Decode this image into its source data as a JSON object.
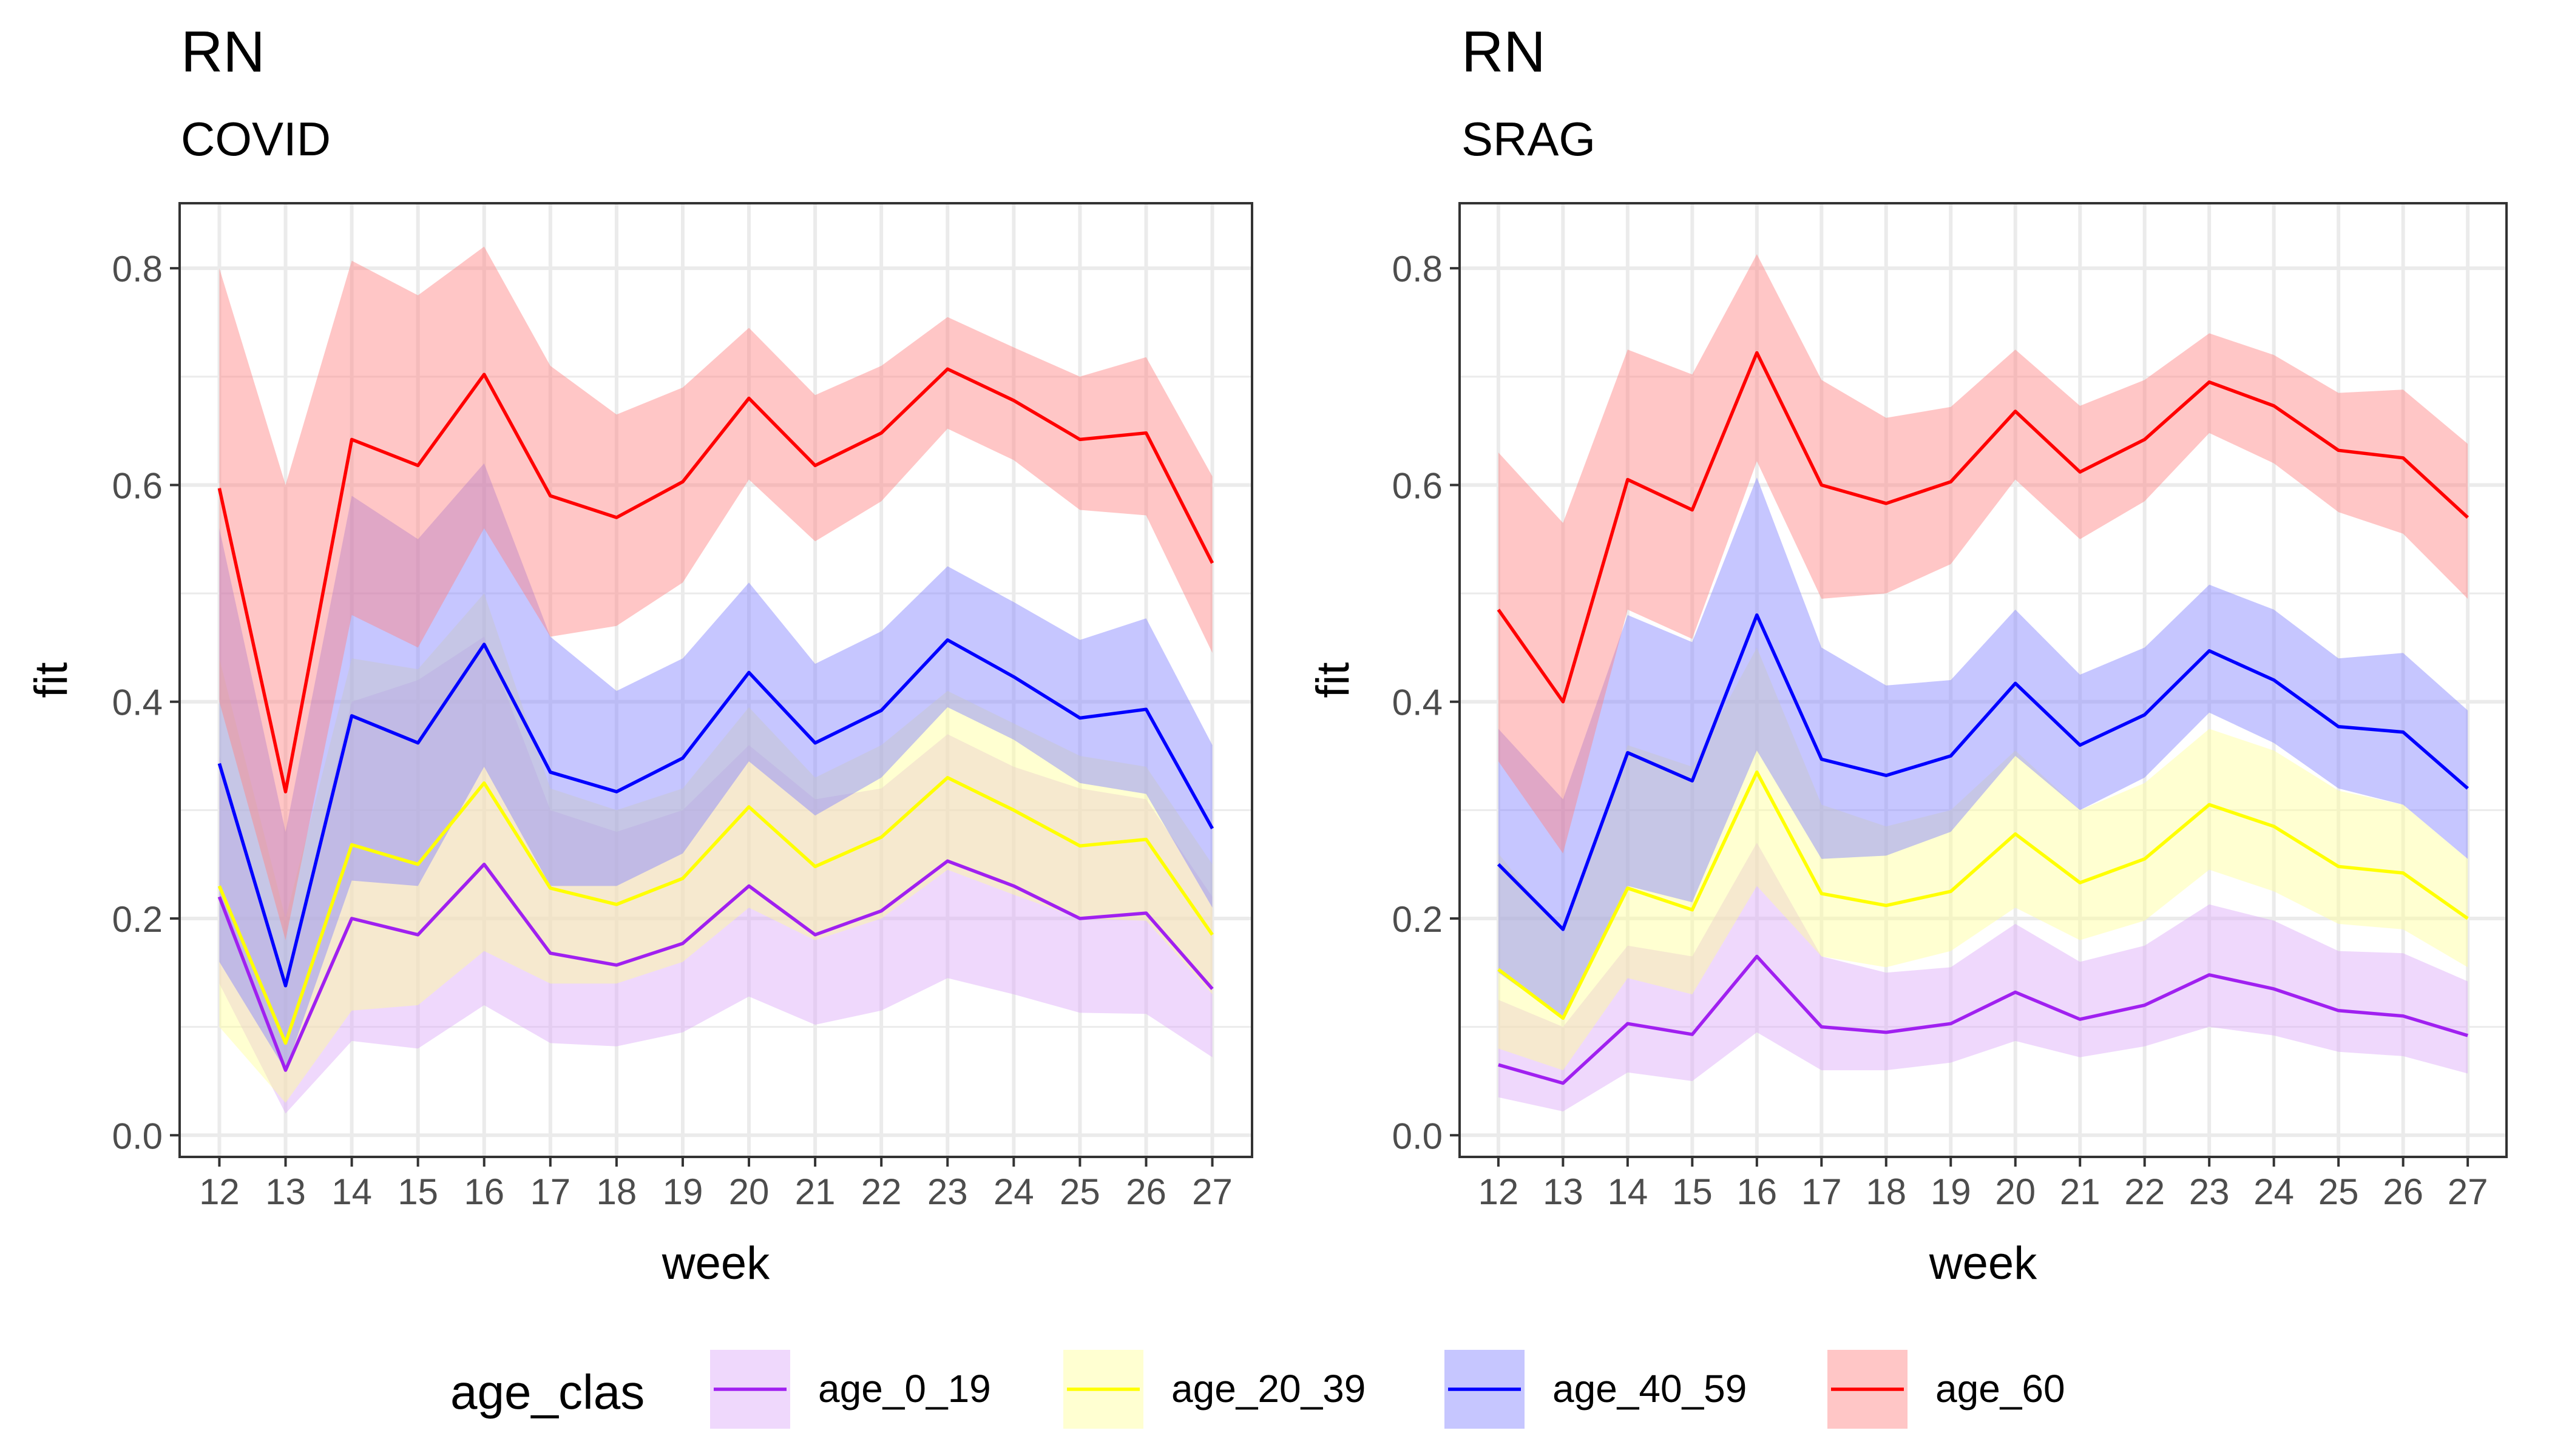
{
  "legend": {
    "title": "age_clas",
    "items": [
      {
        "key": "age_0_19",
        "label": "age_0_19"
      },
      {
        "key": "age_20_39",
        "label": "age_20_39"
      },
      {
        "key": "age_40_59",
        "label": "age_40_59"
      },
      {
        "key": "age_60",
        "label": "age_60"
      }
    ]
  },
  "colors": {
    "age_0_19": {
      "line": "#A020F0",
      "fill": "#DCA8F8"
    },
    "age_20_39": {
      "line": "#FFFF00",
      "fill": "#FFFF99"
    },
    "age_40_59": {
      "line": "#0000FF",
      "fill": "#8080FF"
    },
    "age_60": {
      "line": "#FF0000",
      "fill": "#FF8080"
    }
  },
  "chart_data": [
    {
      "type": "line",
      "title": "RN",
      "subtitle": "COVID",
      "xlabel": "week",
      "ylabel": "fit",
      "x": [
        12,
        13,
        14,
        15,
        16,
        17,
        18,
        19,
        20,
        21,
        22,
        23,
        24,
        25,
        26,
        27
      ],
      "xlim": [
        11.4,
        27.6
      ],
      "ylim": [
        -0.02,
        0.86
      ],
      "yticks": [
        0.0,
        0.2,
        0.4,
        0.6,
        0.8
      ],
      "ytick_labels": [
        "0.0",
        "0.2",
        "0.4",
        "0.6",
        "0.8"
      ],
      "grid": true,
      "series": [
        {
          "name": "age_0_19",
          "values": [
            0.22,
            0.06,
            0.2,
            0.185,
            0.25,
            0.168,
            0.157,
            0.177,
            0.23,
            0.185,
            0.207,
            0.253,
            0.23,
            0.2,
            0.205,
            0.135
          ],
          "lower": [
            0.14,
            0.02,
            0.087,
            0.08,
            0.12,
            0.085,
            0.082,
            0.095,
            0.128,
            0.102,
            0.115,
            0.145,
            0.13,
            0.113,
            0.112,
            0.072
          ],
          "upper": [
            0.35,
            0.14,
            0.4,
            0.42,
            0.46,
            0.3,
            0.28,
            0.3,
            0.36,
            0.31,
            0.32,
            0.37,
            0.34,
            0.32,
            0.31,
            0.22
          ]
        },
        {
          "name": "age_20_39",
          "values": [
            0.23,
            0.085,
            0.268,
            0.25,
            0.325,
            0.228,
            0.213,
            0.237,
            0.303,
            0.248,
            0.275,
            0.33,
            0.3,
            0.267,
            0.273,
            0.185
          ],
          "lower": [
            0.1,
            0.03,
            0.115,
            0.12,
            0.17,
            0.14,
            0.14,
            0.16,
            0.21,
            0.18,
            0.2,
            0.245,
            0.222,
            0.2,
            0.198,
            0.13
          ],
          "upper": [
            0.44,
            0.2,
            0.44,
            0.43,
            0.5,
            0.32,
            0.3,
            0.32,
            0.395,
            0.33,
            0.36,
            0.41,
            0.38,
            0.35,
            0.34,
            0.25
          ]
        },
        {
          "name": "age_40_59",
          "values": [
            0.343,
            0.138,
            0.387,
            0.362,
            0.453,
            0.335,
            0.317,
            0.348,
            0.427,
            0.362,
            0.392,
            0.457,
            0.423,
            0.385,
            0.393,
            0.283
          ],
          "lower": [
            0.16,
            0.06,
            0.235,
            0.23,
            0.34,
            0.23,
            0.23,
            0.26,
            0.345,
            0.295,
            0.33,
            0.395,
            0.365,
            0.325,
            0.315,
            0.21
          ],
          "upper": [
            0.56,
            0.28,
            0.59,
            0.55,
            0.62,
            0.46,
            0.41,
            0.44,
            0.51,
            0.435,
            0.465,
            0.525,
            0.492,
            0.457,
            0.477,
            0.36
          ]
        },
        {
          "name": "age_60",
          "values": [
            0.597,
            0.317,
            0.642,
            0.618,
            0.702,
            0.59,
            0.57,
            0.603,
            0.68,
            0.618,
            0.648,
            0.707,
            0.678,
            0.642,
            0.648,
            0.528
          ],
          "lower": [
            0.4,
            0.18,
            0.48,
            0.45,
            0.56,
            0.46,
            0.47,
            0.51,
            0.605,
            0.548,
            0.585,
            0.652,
            0.623,
            0.577,
            0.572,
            0.445
          ],
          "upper": [
            0.8,
            0.6,
            0.807,
            0.775,
            0.82,
            0.71,
            0.665,
            0.69,
            0.745,
            0.683,
            0.71,
            0.755,
            0.727,
            0.7,
            0.718,
            0.608
          ]
        }
      ]
    },
    {
      "type": "line",
      "title": "RN",
      "subtitle": "SRAG",
      "xlabel": "week",
      "ylabel": "fit",
      "x": [
        12,
        13,
        14,
        15,
        16,
        17,
        18,
        19,
        20,
        21,
        22,
        23,
        24,
        25,
        26,
        27
      ],
      "xlim": [
        11.4,
        27.6
      ],
      "ylim": [
        -0.02,
        0.86
      ],
      "yticks": [
        0.0,
        0.2,
        0.4,
        0.6,
        0.8
      ],
      "ytick_labels": [
        "0.0",
        "0.2",
        "0.4",
        "0.6",
        "0.8"
      ],
      "grid": true,
      "series": [
        {
          "name": "age_0_19",
          "values": [
            0.065,
            0.048,
            0.103,
            0.093,
            0.165,
            0.1,
            0.095,
            0.103,
            0.132,
            0.107,
            0.12,
            0.148,
            0.135,
            0.115,
            0.11,
            0.092
          ],
          "lower": [
            0.035,
            0.022,
            0.058,
            0.05,
            0.095,
            0.06,
            0.06,
            0.067,
            0.087,
            0.072,
            0.082,
            0.1,
            0.092,
            0.077,
            0.073,
            0.057
          ],
          "upper": [
            0.125,
            0.1,
            0.175,
            0.165,
            0.27,
            0.165,
            0.15,
            0.155,
            0.195,
            0.16,
            0.175,
            0.213,
            0.198,
            0.17,
            0.168,
            0.142
          ]
        },
        {
          "name": "age_20_39",
          "values": [
            0.153,
            0.108,
            0.228,
            0.208,
            0.335,
            0.223,
            0.212,
            0.225,
            0.278,
            0.233,
            0.255,
            0.305,
            0.285,
            0.248,
            0.242,
            0.2
          ],
          "lower": [
            0.08,
            0.06,
            0.145,
            0.13,
            0.23,
            0.165,
            0.155,
            0.17,
            0.21,
            0.18,
            0.198,
            0.245,
            0.225,
            0.195,
            0.19,
            0.155
          ],
          "upper": [
            0.26,
            0.185,
            0.36,
            0.34,
            0.45,
            0.305,
            0.285,
            0.3,
            0.355,
            0.3,
            0.325,
            0.375,
            0.355,
            0.318,
            0.305,
            0.255
          ]
        },
        {
          "name": "age_40_59",
          "values": [
            0.25,
            0.19,
            0.353,
            0.327,
            0.48,
            0.347,
            0.332,
            0.35,
            0.417,
            0.36,
            0.388,
            0.447,
            0.42,
            0.377,
            0.372,
            0.32
          ],
          "lower": [
            0.15,
            0.108,
            0.23,
            0.215,
            0.355,
            0.255,
            0.258,
            0.28,
            0.35,
            0.3,
            0.33,
            0.39,
            0.362,
            0.32,
            0.305,
            0.255
          ],
          "upper": [
            0.375,
            0.31,
            0.48,
            0.455,
            0.607,
            0.45,
            0.415,
            0.42,
            0.485,
            0.425,
            0.45,
            0.508,
            0.485,
            0.44,
            0.445,
            0.392
          ]
        },
        {
          "name": "age_60",
          "values": [
            0.485,
            0.4,
            0.605,
            0.577,
            0.722,
            0.6,
            0.583,
            0.603,
            0.668,
            0.612,
            0.642,
            0.695,
            0.673,
            0.632,
            0.625,
            0.57
          ],
          "lower": [
            0.345,
            0.26,
            0.485,
            0.458,
            0.622,
            0.495,
            0.5,
            0.527,
            0.605,
            0.55,
            0.585,
            0.648,
            0.62,
            0.575,
            0.555,
            0.495
          ],
          "upper": [
            0.63,
            0.565,
            0.725,
            0.702,
            0.813,
            0.697,
            0.662,
            0.672,
            0.725,
            0.673,
            0.697,
            0.74,
            0.72,
            0.685,
            0.688,
            0.638
          ]
        }
      ]
    }
  ]
}
